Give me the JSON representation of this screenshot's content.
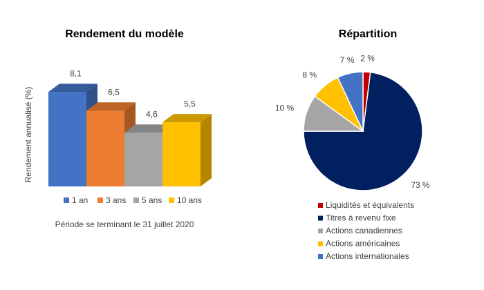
{
  "chart_data": [
    {
      "type": "bar",
      "title": "Rendement du modèle",
      "y_label": "Rendement annualisé (%)",
      "series": [
        {
          "name": "1 an",
          "color": "#4472c4",
          "values": [
            8.1
          ],
          "value_labels": [
            "8,1"
          ]
        },
        {
          "name": "3 ans",
          "color": "#ed7d31",
          "values": [
            6.5
          ],
          "value_labels": [
            "6,5"
          ]
        },
        {
          "name": "5 ans",
          "color": "#a5a5a5",
          "values": [
            4.6
          ],
          "value_labels": [
            "4,6"
          ]
        },
        {
          "name": "10 ans",
          "color": "#ffc000",
          "values": [
            5.5
          ],
          "value_labels": [
            "5,5"
          ]
        }
      ],
      "ylim": [
        0,
        9
      ],
      "note": "Période se terminant le 31 juillet 2020"
    },
    {
      "type": "pie",
      "title": "Répartition",
      "categories": [
        "Liquidités et équivalents",
        "Titres à revenu fixe",
        "Actions canadiennes",
        "Actions américaines",
        "Actions internationales"
      ],
      "values": [
        2,
        73,
        10,
        8,
        7
      ],
      "value_labels": [
        "2 %",
        "73 %",
        "10 %",
        "8 %",
        "7 %"
      ],
      "colors": [
        "#c00000",
        "#002060",
        "#a5a5a5",
        "#ffc000",
        "#4472c4"
      ]
    }
  ]
}
